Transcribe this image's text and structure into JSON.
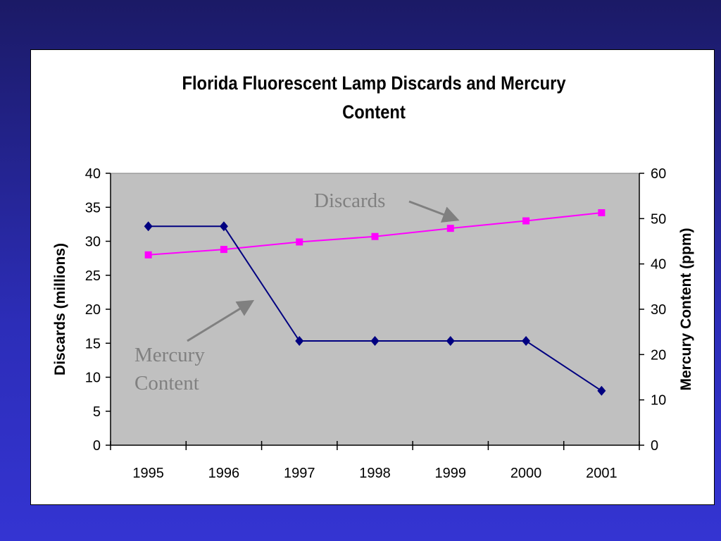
{
  "chart_data": {
    "type": "line",
    "title_lines": [
      "Florida Fluorescent Lamp Discards and Mercury",
      "Content"
    ],
    "categories": [
      "1995",
      "1996",
      "1997",
      "1998",
      "1999",
      "2000",
      "2001"
    ],
    "y_left": {
      "label": "Discards (millions)",
      "range": [
        0,
        40
      ],
      "ticks": [
        "0",
        "5",
        "10",
        "15",
        "20",
        "25",
        "30",
        "35",
        "40"
      ]
    },
    "y_right": {
      "label": "Mercury Content (ppm)",
      "range": [
        0,
        60
      ],
      "ticks": [
        "0",
        "10",
        "20",
        "30",
        "40",
        "50",
        "60"
      ]
    },
    "series": [
      {
        "name": "Discards",
        "axis": "left",
        "color": "#ff00ff",
        "marker": "square",
        "values": [
          28,
          28.8,
          29.9,
          30.7,
          31.9,
          33,
          34.2
        ]
      },
      {
        "name": "Mercury Content",
        "axis": "right",
        "color": "#000080",
        "marker": "diamond",
        "values": [
          48.3,
          48.3,
          23,
          23,
          23,
          23,
          12
        ]
      }
    ],
    "annotations": {
      "discards": "Discards",
      "mercury": [
        "Mercury",
        "Content"
      ]
    },
    "plot_background": "#c0c0c0",
    "annotation_color": "#808080",
    "grid": false
  }
}
